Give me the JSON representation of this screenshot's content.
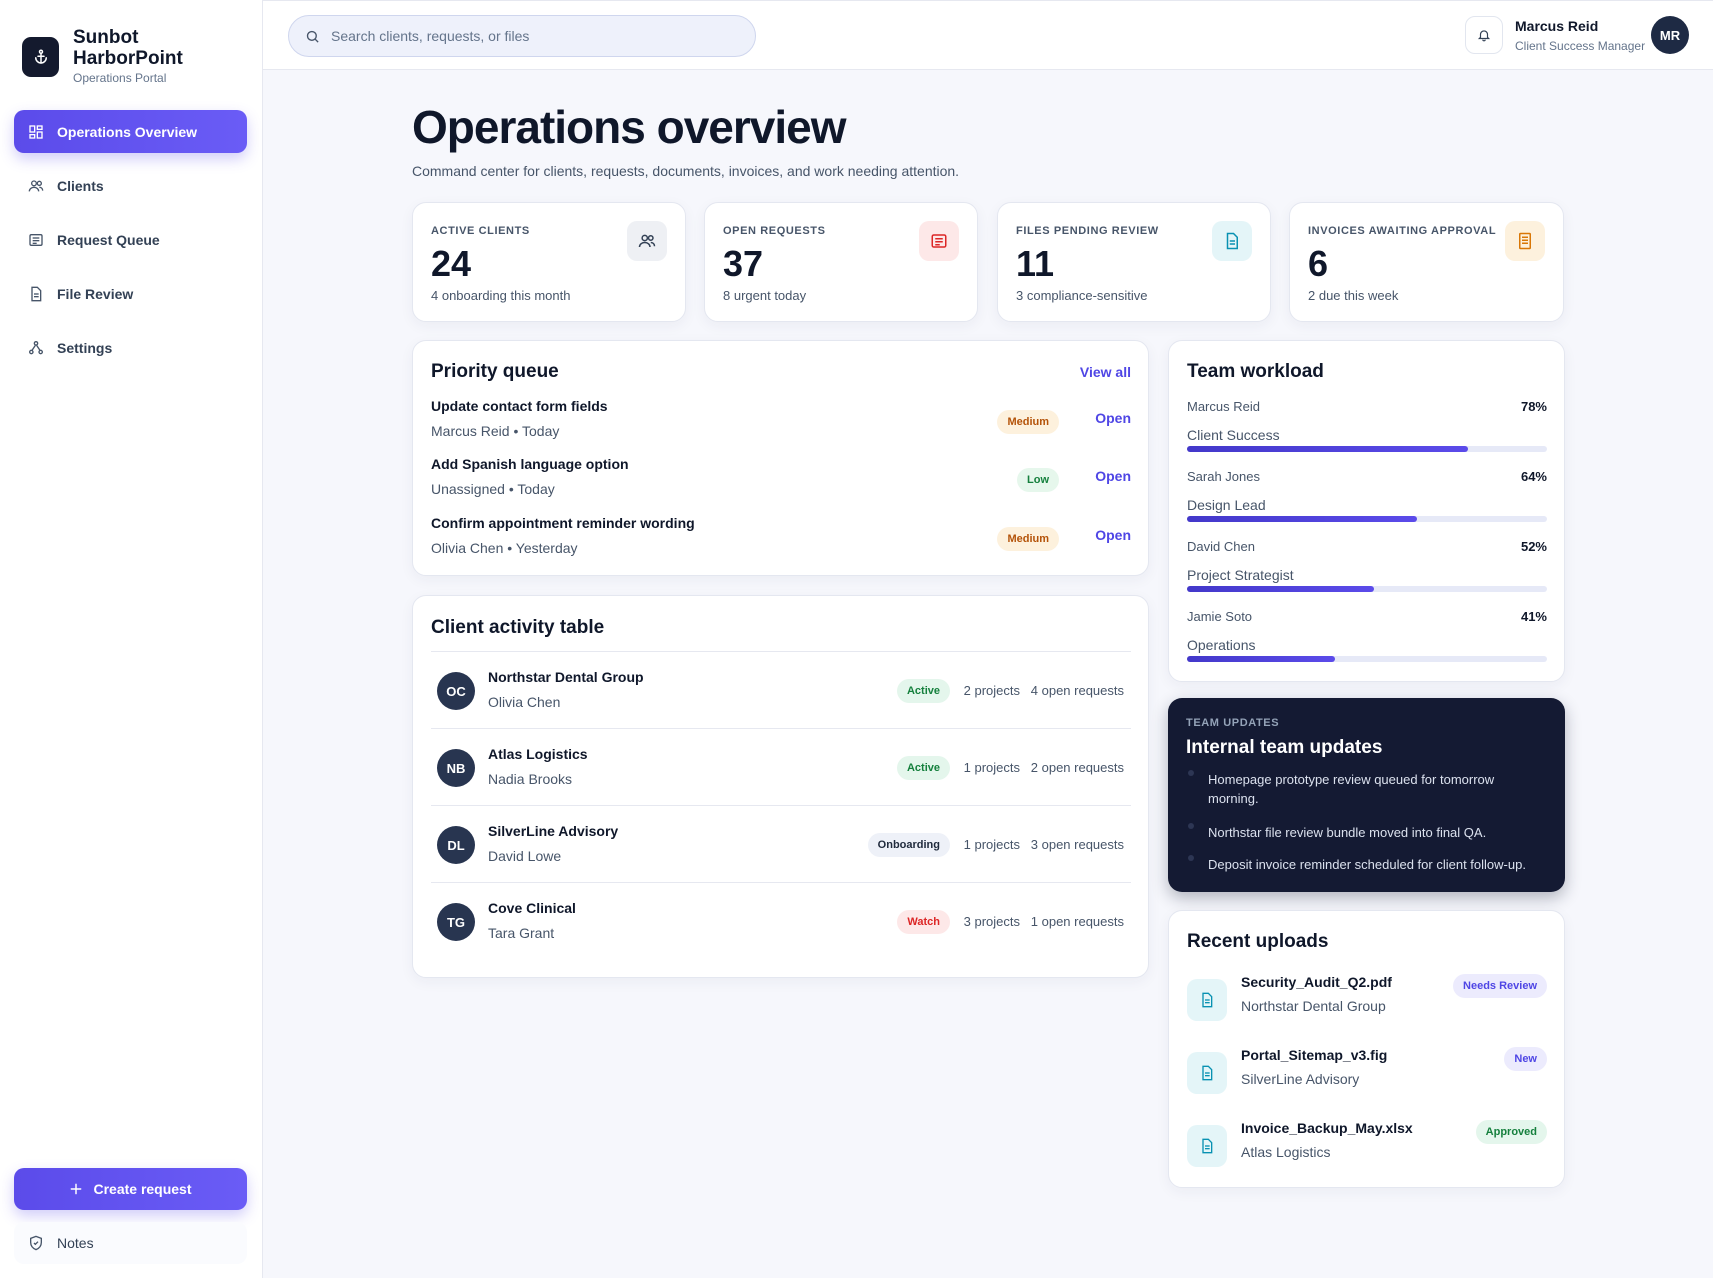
{
  "brand": {
    "name_line1": "Sunbot",
    "name_line2": "HarborPoint",
    "subtitle": "Operations Portal"
  },
  "nav": {
    "items": [
      {
        "label": "Operations Overview",
        "icon": "dashboard-icon",
        "active": true
      },
      {
        "label": "Clients",
        "icon": "users-icon"
      },
      {
        "label": "Request Queue",
        "icon": "list-icon"
      },
      {
        "label": "File Review",
        "icon": "file-icon"
      },
      {
        "label": "Settings",
        "icon": "settings-icon"
      }
    ],
    "create_label": "Create request",
    "notes_label": "Notes"
  },
  "search": {
    "placeholder": "Search clients, requests, or files"
  },
  "user": {
    "name": "Marcus Reid",
    "role": "Client Success Manager",
    "initials": "MR"
  },
  "header": {
    "title": "Operations overview",
    "subtitle": "Command center for clients, requests, documents, invoices, and work needing attention."
  },
  "stats": [
    {
      "label": "ACTIVE CLIENTS",
      "value": "24",
      "note": "4 onboarding this month",
      "icon": "users-icon",
      "color": "#334155"
    },
    {
      "label": "OPEN REQUESTS",
      "value": "37",
      "note": "8 urgent today",
      "icon": "list-icon",
      "color": "#dc2626"
    },
    {
      "label": "FILES PENDING REVIEW",
      "value": "11",
      "note": "3 compliance-sensitive",
      "icon": "file-icon",
      "color": "#0891b2"
    },
    {
      "label": "INVOICES AWAITING APPROVAL",
      "value": "6",
      "note": "2 due this week",
      "icon": "invoice-icon",
      "color": "#d97706"
    }
  ],
  "priority_queue": {
    "title": "Priority queue",
    "view_all": "View all",
    "items": [
      {
        "title": "Update contact form fields",
        "meta": "Marcus Reid • Today",
        "priority": "Medium",
        "action": "Open"
      },
      {
        "title": "Add Spanish language option",
        "meta": "Unassigned • Today",
        "priority": "Low",
        "action": "Open"
      },
      {
        "title": "Confirm appointment reminder wording",
        "meta": "Olivia Chen • Yesterday",
        "priority": "Medium",
        "action": "Open"
      }
    ]
  },
  "client_activity": {
    "title": "Client activity table",
    "rows": [
      {
        "initials": "OC",
        "client": "Northstar Dental Group",
        "person": "Olivia Chen",
        "status": "Active",
        "projects": "2 projects",
        "requests": "4 open requests"
      },
      {
        "initials": "NB",
        "client": "Atlas Logistics",
        "person": "Nadia Brooks",
        "status": "Active",
        "projects": "1 projects",
        "requests": "2 open requests"
      },
      {
        "initials": "DL",
        "client": "SilverLine Advisory",
        "person": "David Lowe",
        "status": "Onboarding",
        "projects": "1 projects",
        "requests": "3 open requests"
      },
      {
        "initials": "TG",
        "client": "Cove Clinical",
        "person": "Tara Grant",
        "status": "Watch",
        "projects": "3 projects",
        "requests": "1 open requests"
      }
    ]
  },
  "team_workload": {
    "title": "Team workload",
    "members": [
      {
        "name": "Marcus Reid",
        "role": "Client Success",
        "percent_label": "78%",
        "percent": 78
      },
      {
        "name": "Sarah Jones",
        "role": "Design Lead",
        "percent_label": "64%",
        "percent": 64
      },
      {
        "name": "David Chen",
        "role": "Project Strategist",
        "percent_label": "52%",
        "percent": 52
      },
      {
        "name": "Jamie Soto",
        "role": "Operations",
        "percent_label": "41%",
        "percent": 41
      }
    ]
  },
  "team_updates": {
    "kicker": "TEAM UPDATES",
    "title": "Internal team updates",
    "items": [
      "Homepage prototype review queued for tomorrow morning.",
      "Northstar file review bundle moved into final QA.",
      "Deposit invoice reminder scheduled for client follow-up."
    ]
  },
  "recent_uploads": {
    "title": "Recent uploads",
    "files": [
      {
        "name": "Security_Audit_Q2.pdf",
        "client": "Northstar Dental Group",
        "status": "Needs Review"
      },
      {
        "name": "Portal_Sitemap_v3.fig",
        "client": "SilverLine Advisory",
        "status": "New"
      },
      {
        "name": "Invoice_Backup_May.xlsx",
        "client": "Atlas Logistics",
        "status": "Approved"
      }
    ]
  }
}
